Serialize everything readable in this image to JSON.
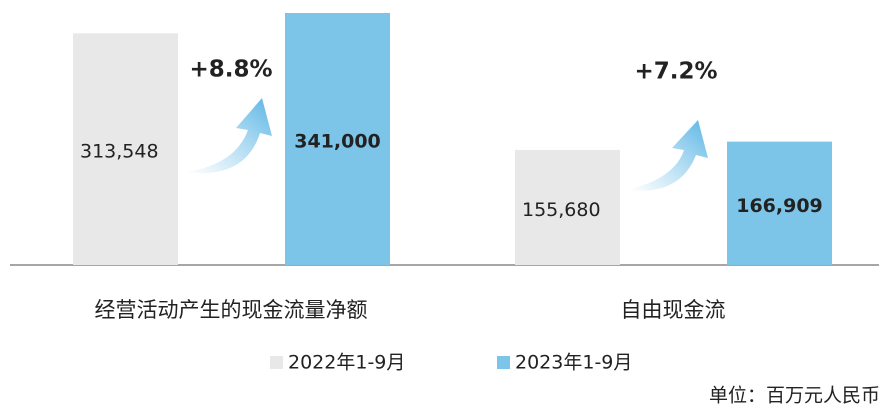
{
  "chart_data": {
    "type": "bar",
    "categories": [
      "经营活动产生的现金流量净额",
      "自由现金流"
    ],
    "series": [
      {
        "name": "2022年1-9月",
        "color": "#e8e8e8",
        "values": [
          313548,
          155680
        ],
        "value_labels": [
          "313,548",
          "155,680"
        ]
      },
      {
        "name": "2023年1-9月",
        "color": "#7dc5e8",
        "values": [
          341000,
          166909
        ],
        "value_labels": [
          "341,000",
          "166,909"
        ]
      }
    ],
    "annotations": [
      "+8.8%",
      "+7.2%"
    ],
    "unit": "单位：百万元人民币"
  }
}
